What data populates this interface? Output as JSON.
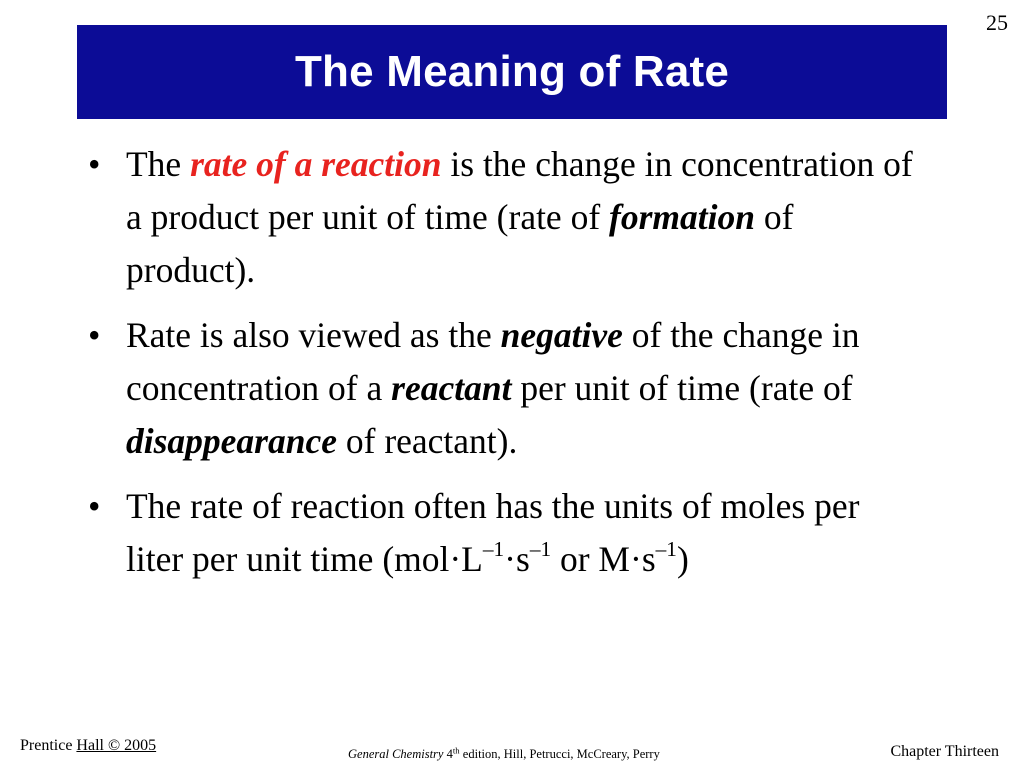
{
  "page_number": "25",
  "title": "The Meaning of Rate",
  "bullets": [
    {
      "p1": "The ",
      "term": "rate of a reaction",
      "p2": " is the change in concentration of a product per unit of time (rate of ",
      "em": "formation",
      "p3": " of product)."
    },
    {
      "p1": "Rate is also viewed as the ",
      "em1": "negative",
      "p2": " of the change in concentration of a ",
      "em2": "reactant",
      "p3": " per unit of time (rate of ",
      "em3": "disappearance",
      "p4": " of reactant)."
    },
    {
      "p1": "The rate of reaction often has the units of moles per liter per unit time (mol·L",
      "sup1": "–1",
      "p2": "·s",
      "sup2": "–1",
      "p3": " or M·s",
      "sup3": "–1",
      "p4": ")"
    }
  ],
  "bullet_symbol": "•",
  "footer": {
    "publisher_prefix": "Prentice ",
    "publisher_link": "Hall © 2005",
    "book_title": "General Chemistry",
    "edition_num": " 4",
    "edition_sup": "th",
    "edition_rest": " edition, Hill, Petrucci, McCreary, Perry",
    "chapter": "Chapter Thirteen"
  },
  "colors": {
    "title_bar": "#0c0c96",
    "title_text": "#ffffff",
    "highlight": "#e8231f"
  }
}
